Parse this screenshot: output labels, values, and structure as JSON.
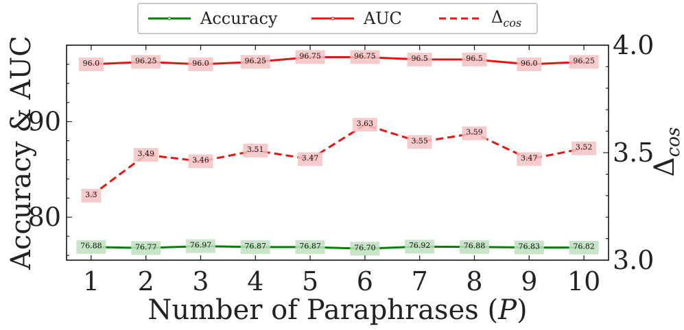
{
  "chart_data": {
    "type": "line",
    "x": [
      1,
      2,
      3,
      4,
      5,
      6,
      7,
      8,
      9,
      10
    ],
    "xlabel": "Number of Paraphrases (P)",
    "ylabel_left": "Accuracy & AUC",
    "ylabel_right": "Δcos",
    "ylim_left": [
      75.5,
      98
    ],
    "yticks_left": [
      "80",
      "90"
    ],
    "ylim_right": [
      3.0,
      4.0
    ],
    "yticks_right": [
      "3.0",
      "3.5",
      "4.0"
    ],
    "xticks": [
      "1",
      "2",
      "3",
      "4",
      "5",
      "6",
      "7",
      "8",
      "9",
      "10"
    ],
    "series": [
      {
        "name": "Accuracy",
        "axis": "left",
        "color": "#008000",
        "style": "solid",
        "label_bg": "#bfe0bf",
        "values": [
          76.88,
          76.77,
          76.97,
          76.87,
          76.87,
          76.7,
          76.92,
          76.88,
          76.83,
          76.82
        ],
        "labels": [
          "76.88",
          "76.77",
          "76.97",
          "76.87",
          "76.87",
          "76.70",
          "76.92",
          "76.88",
          "76.83",
          "76.82"
        ]
      },
      {
        "name": "AUC",
        "axis": "left",
        "color": "#ee1111",
        "style": "solid",
        "label_bg": "#f5c2c2",
        "values": [
          96.0,
          96.25,
          96.0,
          96.25,
          96.75,
          96.75,
          96.5,
          96.5,
          96.0,
          96.25
        ],
        "labels": [
          "96.0",
          "96.25",
          "96.0",
          "96.25",
          "96.75",
          "96.75",
          "96.5",
          "96.5",
          "96.0",
          "96.25"
        ]
      },
      {
        "name": "Δcos",
        "axis": "right",
        "color": "#ee1111",
        "style": "dashed",
        "label_bg": "#f5c2c2",
        "values": [
          3.3,
          3.49,
          3.46,
          3.51,
          3.47,
          3.63,
          3.55,
          3.59,
          3.47,
          3.52
        ],
        "labels": [
          "3.3",
          "3.49",
          "3.46",
          "3.51",
          "3.47",
          "3.63",
          "3.55",
          "3.59",
          "3.47",
          "3.52"
        ]
      }
    ]
  },
  "legend": {
    "accuracy": "Accuracy",
    "auc": "AUC",
    "delta_symbol": "Δ",
    "delta_sub": "cos"
  },
  "axis_text": {
    "xlabel_main": "Number of Paraphrases (",
    "xlabel_var": "P",
    "xlabel_close": ")",
    "ylabel_left": "Accuracy & AUC",
    "ylabel_right_symbol": "Δ",
    "ylabel_right_sub": "cos"
  }
}
